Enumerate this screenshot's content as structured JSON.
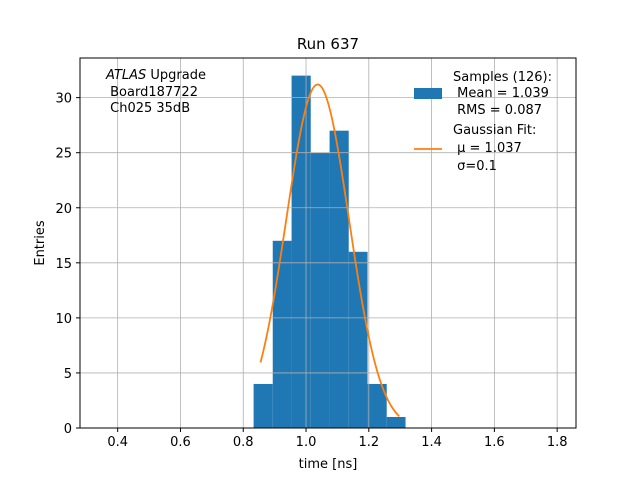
{
  "chart_data": {
    "type": "bar",
    "title": "Run 637",
    "xlabel": "time [ns]",
    "ylabel": "Entries",
    "xlim": [
      0.28,
      1.86
    ],
    "ylim": [
      0,
      33.6
    ],
    "grid": true,
    "xticks": [
      0.4,
      0.6,
      0.8,
      1.0,
      1.2,
      1.4,
      1.6,
      1.8
    ],
    "xtick_labels": [
      "0.4",
      "0.6",
      "0.8",
      "1.0",
      "1.2",
      "1.4",
      "1.6",
      "1.8"
    ],
    "yticks": [
      0,
      5,
      10,
      15,
      20,
      25,
      30
    ],
    "ytick_labels": [
      "0",
      "5",
      "10",
      "15",
      "20",
      "25",
      "30"
    ],
    "bin_edges": [
      0.833,
      0.894,
      0.954,
      1.015,
      1.075,
      1.136,
      1.196,
      1.257,
      1.317
    ],
    "values": [
      4,
      17,
      32,
      25,
      27,
      16,
      4,
      1
    ],
    "fit": {
      "mu": 1.037,
      "sigma": 0.1,
      "amplitude": 31.2,
      "x_range": [
        0.855,
        1.297
      ]
    },
    "annotation": {
      "lines": [
        "ATLAS Upgrade",
        " Board187722",
        " Ch025 35dB"
      ]
    },
    "legend": {
      "position": "top-right",
      "entries": [
        {
          "lines": [
            "Samples (126):",
            " Mean = 1.039",
            " RMS = 0.087"
          ],
          "color": "#1f77b4"
        },
        {
          "lines": [
            "Gaussian Fit:",
            " μ = 1.037",
            " σ=0.1"
          ],
          "color": "#ff7f0e"
        }
      ]
    },
    "colors": {
      "bar": "#1f77b4",
      "fit": "#ff7f0e",
      "grid": "#b0b0b0"
    }
  }
}
